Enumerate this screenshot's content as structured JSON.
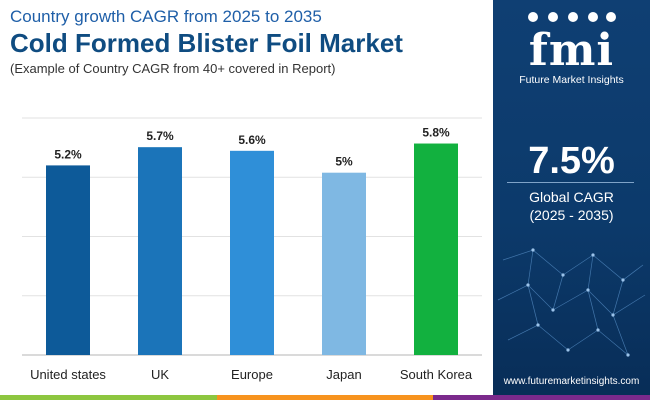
{
  "header": {
    "subtitle": "Country growth CAGR from 2025 to 2035",
    "title": "Cold Formed Blister Foil Market",
    "note": "(Example of Country CAGR from 40+ covered in Report)"
  },
  "sidebar": {
    "logo_mark": "fmi",
    "logo_text": "Future Market Insights",
    "global_value": "7.5%",
    "global_label": "Global CAGR",
    "global_period": "(2025 - 2035)",
    "website": "www.futuremarketinsights.com"
  },
  "colors": {
    "sidebar_bg": "#0c3a6b",
    "footer": [
      "#8dc63f",
      "#f7931e",
      "#7b2a8c"
    ]
  },
  "chart_data": {
    "type": "bar",
    "categories": [
      "United states",
      "UK",
      "Europe",
      "Japan",
      "South Korea"
    ],
    "values": [
      5.2,
      5.7,
      5.6,
      5.0,
      5.8
    ],
    "data_labels": [
      "5.2%",
      "5.7%",
      "5.6%",
      "5%",
      "5.8%"
    ],
    "colors": [
      "#0d5a99",
      "#1b74b9",
      "#2f8fd8",
      "#7fb8e3",
      "#12b13f"
    ],
    "ylim": [
      0,
      6.5
    ],
    "grid": true
  }
}
